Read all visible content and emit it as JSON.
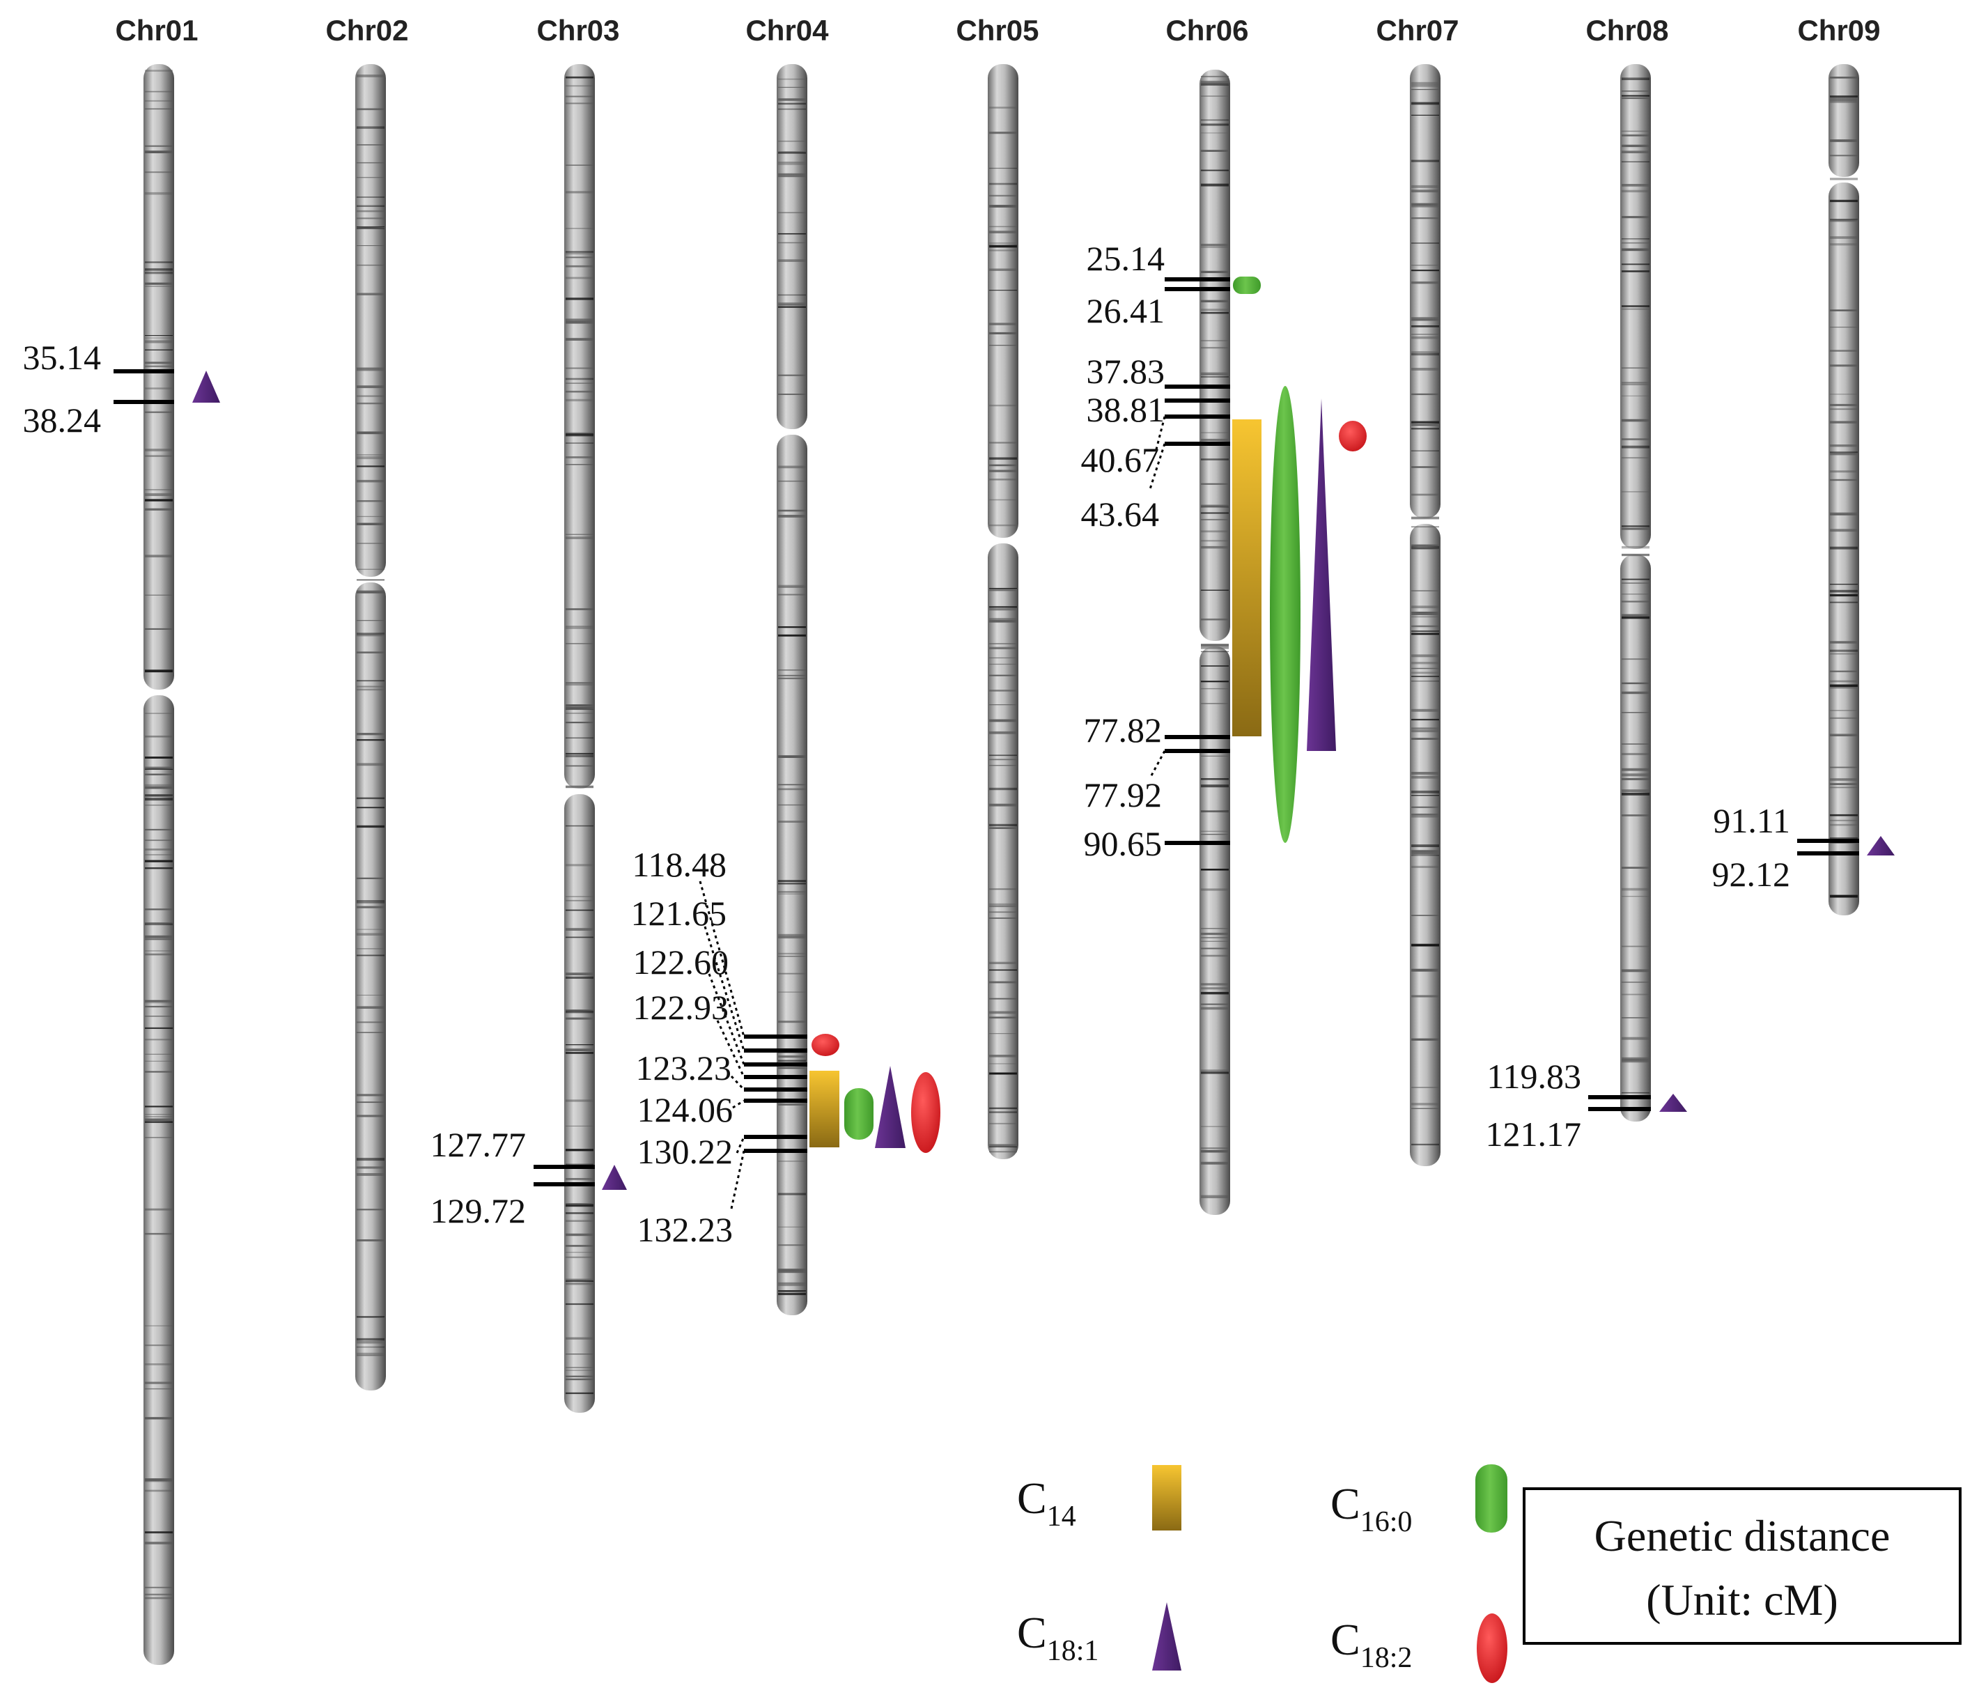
{
  "chromosomes": [
    {
      "name": "Chr01",
      "length": 230
    },
    {
      "name": "Chr02",
      "length": 190
    },
    {
      "name": "Chr03",
      "length": 193
    },
    {
      "name": "Chr04",
      "length": 179
    },
    {
      "name": "Chr05",
      "length": 157
    },
    {
      "name": "Chr06",
      "length": 164
    },
    {
      "name": "Chr07",
      "length": 158
    },
    {
      "name": "Chr08",
      "length": 151
    },
    {
      "name": "Chr09",
      "length": 122
    }
  ],
  "markers": {
    "chr01": [
      "35.14",
      "38.24"
    ],
    "chr03": [
      "127.77",
      "129.72"
    ],
    "chr04": [
      "118.48",
      "121.65",
      "122.60",
      "122.93",
      "123.23",
      "124.06",
      "130.22",
      "132.23"
    ],
    "chr06": [
      "25.14",
      "26.41",
      "37.83",
      "38.81",
      "40.67",
      "43.64",
      "77.82",
      "77.92",
      "90.65"
    ],
    "chr08": [
      "119.83",
      "121.17"
    ],
    "chr09": [
      "91.11",
      "92.12"
    ]
  },
  "qtls": [
    {
      "chr": "Chr01",
      "trait": "C18:1",
      "from": "35.14",
      "to": "38.24"
    },
    {
      "chr": "Chr03",
      "trait": "C18:1",
      "from": "127.77",
      "to": "129.72"
    },
    {
      "chr": "Chr04",
      "trait": "C18:2",
      "from": "118.48",
      "to": "121.65"
    },
    {
      "chr": "Chr04",
      "trait": "C14",
      "from": "123.23",
      "to": "132.23"
    },
    {
      "chr": "Chr04",
      "trait": "C16:0",
      "from": "123.23",
      "to": "130.22"
    },
    {
      "chr": "Chr04",
      "trait": "C18:1",
      "from": "122.93",
      "to": "132.23"
    },
    {
      "chr": "Chr04",
      "trait": "C18:2",
      "from": "122.93",
      "to": "132.23"
    },
    {
      "chr": "Chr06",
      "trait": "C16:0",
      "from": "25.14",
      "to": "26.41"
    },
    {
      "chr": "Chr06",
      "trait": "C14",
      "from": "40.67",
      "to": "77.82"
    },
    {
      "chr": "Chr06",
      "trait": "C16:0",
      "from": "37.83",
      "to": "90.65"
    },
    {
      "chr": "Chr06",
      "trait": "C18:1",
      "from": "38.81",
      "to": "77.92"
    },
    {
      "chr": "Chr06",
      "trait": "C18:2",
      "from": "37.83",
      "to": "43.64"
    },
    {
      "chr": "Chr08",
      "trait": "C18:1",
      "from": "119.83",
      "to": "121.17"
    },
    {
      "chr": "Chr09",
      "trait": "C18:1",
      "from": "91.11",
      "to": "92.12"
    }
  ],
  "legend": {
    "c14": {
      "main": "C",
      "sub": "14"
    },
    "c160": {
      "main": "C",
      "sub": "16:0"
    },
    "c181": {
      "main": "C",
      "sub": "18:1"
    },
    "c182": {
      "main": "C",
      "sub": "18:2"
    }
  },
  "colors": {
    "c14_top": "#f7c531",
    "c14_bottom": "#8a6a14",
    "c160": "#55b33a",
    "c181": "#5a2a82",
    "c182": "#e8262a"
  },
  "genetic_distance": {
    "line1": "Genetic distance",
    "line2": "(Unit: cM)"
  }
}
